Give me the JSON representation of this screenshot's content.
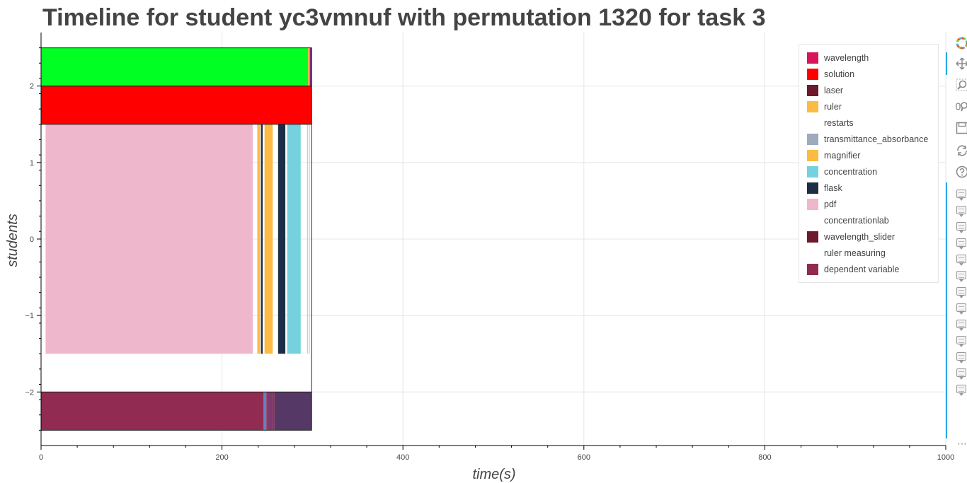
{
  "chart_data": {
    "type": "bar",
    "orientation": "horizontal-timeline",
    "title": "Timeline for student yc3vmnuf with permutation 1320 for task 3",
    "xlabel": "time(s)",
    "ylabel": "students",
    "xlim": [
      0,
      1000
    ],
    "ylim": [
      -2.7,
      2.7
    ],
    "x_ticks": [
      0,
      200,
      400,
      600,
      800,
      1000
    ],
    "x_tick_labels": [
      "0",
      "200",
      "400",
      "600",
      "800",
      "1000"
    ],
    "y_ticks": [
      -2,
      -1,
      0,
      1,
      2
    ],
    "y_tick_labels": [
      "−2",
      "−1",
      "0",
      "1",
      "2"
    ],
    "grid": true,
    "legend_position": "top-right",
    "lanes": [
      {
        "bottom": 2.0,
        "top": 2.5,
        "segments": [
          {
            "start": 0,
            "end": 295,
            "color": "#00ff22"
          },
          {
            "start": 295,
            "end": 297,
            "color": "#f4b942"
          },
          {
            "start": 297,
            "end": 299,
            "color": "#7b2c8c"
          }
        ]
      },
      {
        "bottom": 1.5,
        "top": 2.0,
        "segments": [
          {
            "start": 0,
            "end": 299,
            "color": "#ff0000"
          }
        ]
      },
      {
        "bottom": -1.5,
        "top": 1.5,
        "segments": [
          {
            "start": 5,
            "end": 234,
            "color": "#efb7cb"
          },
          {
            "start": 239,
            "end": 242,
            "color": "#fcbb43"
          },
          {
            "start": 243,
            "end": 245,
            "color": "#1c2e45"
          },
          {
            "start": 247,
            "end": 256,
            "color": "#fcbb43"
          },
          {
            "start": 262,
            "end": 270,
            "color": "#1c2e45"
          },
          {
            "start": 272,
            "end": 287,
            "color": "#75d1de"
          },
          {
            "start": 294,
            "end": 295,
            "color": "#cccccc"
          },
          {
            "start": 296,
            "end": 297,
            "color": "#cccccc"
          }
        ]
      },
      {
        "bottom": -2.5,
        "top": -2.0,
        "segments": [
          {
            "start": 0,
            "end": 246,
            "color": "#922b52"
          },
          {
            "start": 246,
            "end": 249,
            "color": "#5a86c6"
          },
          {
            "start": 249,
            "end": 251,
            "color": "#922b52"
          },
          {
            "start": 251,
            "end": 256,
            "color": "#7a3a6e"
          },
          {
            "start": 256,
            "end": 258,
            "color": "#922b52"
          },
          {
            "start": 258,
            "end": 299,
            "color": "#553865"
          }
        ]
      }
    ],
    "timeline_end": 299,
    "legend": [
      {
        "label": "wavelength",
        "color": "#d6155a"
      },
      {
        "label": "solution",
        "color": "#ff0000"
      },
      {
        "label": "laser",
        "color": "#6e1a2c"
      },
      {
        "label": "ruler",
        "color": "#fcbb43"
      },
      {
        "label": "restarts",
        "color": "#ffffff"
      },
      {
        "label": "transmittance_absorbance",
        "color": "#9eabbc"
      },
      {
        "label": "magnifier",
        "color": "#fcbb43"
      },
      {
        "label": "concentration",
        "color": "#75d1de"
      },
      {
        "label": "flask",
        "color": "#1c2e45"
      },
      {
        "label": "pdf",
        "color": "#efb7cb"
      },
      {
        "label": "concentrationlab",
        "color": "#ffffff"
      },
      {
        "label": "wavelength_slider",
        "color": "#6e1a2c"
      },
      {
        "label": "ruler measuring",
        "color": "#ffffff"
      },
      {
        "label": "dependent variable",
        "color": "#922b52"
      }
    ]
  },
  "toolbar": {
    "tools": [
      {
        "name": "bokeh-logo-icon"
      },
      {
        "name": "pan-icon"
      },
      {
        "name": "box-zoom-icon"
      },
      {
        "name": "wheel-zoom-icon"
      },
      {
        "name": "save-icon"
      },
      {
        "name": "reset-icon"
      },
      {
        "name": "help-icon"
      }
    ],
    "hover_tool_count": 13,
    "overflow_label": "⋯",
    "accent_color": "#26aae1"
  }
}
